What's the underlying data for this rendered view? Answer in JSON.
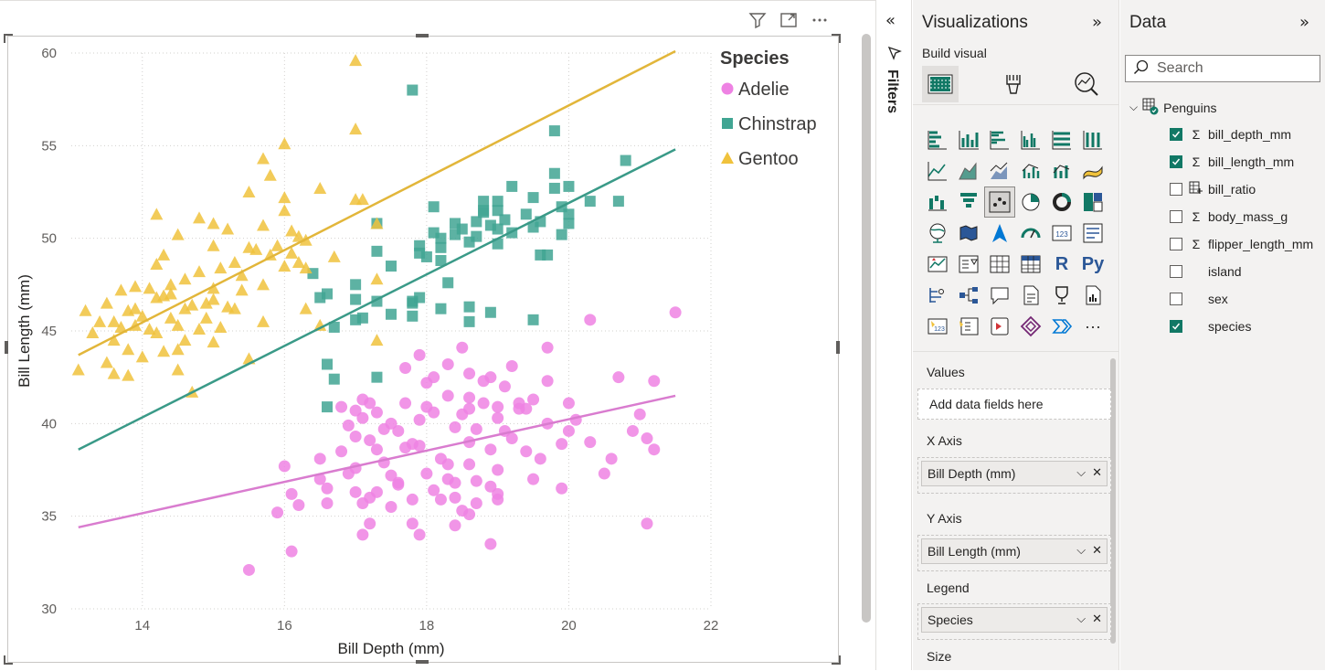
{
  "visual_toolbar": {
    "filter_icon": "filter-icon",
    "focus_icon": "focus-mode-icon",
    "more_icon": "more-options-icon"
  },
  "chart_data": {
    "type": "scatter",
    "xlabel": "Bill Depth (mm)",
    "ylabel": "Bill Length (mm)",
    "xlim": [
      13,
      22
    ],
    "ylim": [
      30,
      60
    ],
    "xticks": [
      "14",
      "16",
      "18",
      "20",
      "22"
    ],
    "yticks": [
      "30",
      "35",
      "40",
      "45",
      "50",
      "55",
      "60"
    ],
    "grid": true,
    "legend": {
      "title": "Species",
      "placement": "top-right"
    },
    "series": [
      {
        "name": "Adelie",
        "marker": "circle",
        "color": "#ee82e3",
        "trendline": {
          "x": [
            13.1,
            21.5
          ],
          "y": [
            34.4,
            41.5
          ]
        },
        "points": [
          [
            15.5,
            32.1
          ],
          [
            16.1,
            33.1
          ],
          [
            15.9,
            35.2
          ],
          [
            16.2,
            35.6
          ],
          [
            16.1,
            36.2
          ],
          [
            16.0,
            37.7
          ],
          [
            16.5,
            38.1
          ],
          [
            16.5,
            37.0
          ],
          [
            16.6,
            36.5
          ],
          [
            16.6,
            35.7
          ],
          [
            16.9,
            37.3
          ],
          [
            17.0,
            37.6
          ],
          [
            16.8,
            38.5
          ],
          [
            17.1,
            35.7
          ],
          [
            17.2,
            36.0
          ],
          [
            17.0,
            39.3
          ],
          [
            17.1,
            40.3
          ],
          [
            17.2,
            41.1
          ],
          [
            17.3,
            40.6
          ],
          [
            17.0,
            40.7
          ],
          [
            17.4,
            39.7
          ],
          [
            17.3,
            38.6
          ],
          [
            17.5,
            37.2
          ],
          [
            17.6,
            36.8
          ],
          [
            17.7,
            38.7
          ],
          [
            17.5,
            35.5
          ],
          [
            17.8,
            35.9
          ],
          [
            17.9,
            38.8
          ],
          [
            17.9,
            40.2
          ],
          [
            18.0,
            40.9
          ],
          [
            18.0,
            42.2
          ],
          [
            18.1,
            40.6
          ],
          [
            18.2,
            38.1
          ],
          [
            18.3,
            37.8
          ],
          [
            18.4,
            39.8
          ],
          [
            18.4,
            36.8
          ],
          [
            18.5,
            40.5
          ],
          [
            18.6,
            41.4
          ],
          [
            18.6,
            39.0
          ],
          [
            18.6,
            37.8
          ],
          [
            18.7,
            39.7
          ],
          [
            18.8,
            42.3
          ],
          [
            18.8,
            41.1
          ],
          [
            18.9,
            36.6
          ],
          [
            19.0,
            36.2
          ],
          [
            19.0,
            40.9
          ],
          [
            19.0,
            37.5
          ],
          [
            19.1,
            42.0
          ],
          [
            19.2,
            39.2
          ],
          [
            19.3,
            41.1
          ],
          [
            19.4,
            38.5
          ],
          [
            19.5,
            37.0
          ],
          [
            19.6,
            38.1
          ],
          [
            19.7,
            42.3
          ],
          [
            19.9,
            36.5
          ],
          [
            20.0,
            41.1
          ],
          [
            20.1,
            40.2
          ],
          [
            20.3,
            45.6
          ],
          [
            20.6,
            38.1
          ],
          [
            20.7,
            42.5
          ],
          [
            21.1,
            39.2
          ],
          [
            21.1,
            34.6
          ],
          [
            21.2,
            38.6
          ],
          [
            21.2,
            42.3
          ],
          [
            21.5,
            46.0
          ],
          [
            19.7,
            44.1
          ],
          [
            18.3,
            43.2
          ],
          [
            18.6,
            42.7
          ],
          [
            18.5,
            44.1
          ],
          [
            18.1,
            42.5
          ],
          [
            17.7,
            43.0
          ],
          [
            17.9,
            43.7
          ],
          [
            18.9,
            42.5
          ],
          [
            19.2,
            43.1
          ],
          [
            18.4,
            34.5
          ],
          [
            17.8,
            34.6
          ],
          [
            17.9,
            34.0
          ],
          [
            18.9,
            33.5
          ],
          [
            17.1,
            34.0
          ],
          [
            17.2,
            34.6
          ],
          [
            18.6,
            35.1
          ],
          [
            18.4,
            36.0
          ],
          [
            18.3,
            37.0
          ],
          [
            17.6,
            36.7
          ],
          [
            17.3,
            36.3
          ],
          [
            17.0,
            36.3
          ],
          [
            17.4,
            37.9
          ],
          [
            17.8,
            38.9
          ],
          [
            18.0,
            37.3
          ],
          [
            18.2,
            35.9
          ],
          [
            18.5,
            35.3
          ],
          [
            18.7,
            36.9
          ],
          [
            18.9,
            38.6
          ],
          [
            19.1,
            39.6
          ],
          [
            19.3,
            40.8
          ],
          [
            19.5,
            41.3
          ],
          [
            19.7,
            40.0
          ],
          [
            19.9,
            38.9
          ],
          [
            20.0,
            39.6
          ],
          [
            20.3,
            39.0
          ],
          [
            20.5,
            37.3
          ],
          [
            20.9,
            39.6
          ],
          [
            21.0,
            40.5
          ],
          [
            19.0,
            35.9
          ],
          [
            18.7,
            35.7
          ],
          [
            18.1,
            36.4
          ],
          [
            17.6,
            39.6
          ],
          [
            17.7,
            41.1
          ],
          [
            17.5,
            40.0
          ],
          [
            17.2,
            39.1
          ],
          [
            16.9,
            39.9
          ],
          [
            16.8,
            40.9
          ],
          [
            17.1,
            41.3
          ],
          [
            18.3,
            41.5
          ],
          [
            18.6,
            40.8
          ],
          [
            19.0,
            40.3
          ],
          [
            19.4,
            40.8
          ]
        ]
      },
      {
        "name": "Chinstrap",
        "marker": "square",
        "color": "#41a593",
        "trendline": {
          "x": [
            13.1,
            21.5
          ],
          "y": [
            38.6,
            54.8
          ]
        },
        "points": [
          [
            16.4,
            48.1
          ],
          [
            16.5,
            46.8
          ],
          [
            16.6,
            43.2
          ],
          [
            16.6,
            40.9
          ],
          [
            16.7,
            45.2
          ],
          [
            16.6,
            47.0
          ],
          [
            16.7,
            42.4
          ],
          [
            17.0,
            45.6
          ],
          [
            17.0,
            47.5
          ],
          [
            17.0,
            46.7
          ],
          [
            17.1,
            45.7
          ],
          [
            17.3,
            50.8
          ],
          [
            17.3,
            49.3
          ],
          [
            17.3,
            46.6
          ],
          [
            17.3,
            42.5
          ],
          [
            17.5,
            45.9
          ],
          [
            17.5,
            48.5
          ],
          [
            17.8,
            45.8
          ],
          [
            17.8,
            46.6
          ],
          [
            17.8,
            46.5
          ],
          [
            17.8,
            58.0
          ],
          [
            17.9,
            46.8
          ],
          [
            17.9,
            49.6
          ],
          [
            17.9,
            49.2
          ],
          [
            18.1,
            50.3
          ],
          [
            18.1,
            51.7
          ],
          [
            18.2,
            49.5
          ],
          [
            18.2,
            50.0
          ],
          [
            18.2,
            46.2
          ],
          [
            18.3,
            47.6
          ],
          [
            18.4,
            50.8
          ],
          [
            18.5,
            50.5
          ],
          [
            18.6,
            46.3
          ],
          [
            18.6,
            45.5
          ],
          [
            18.6,
            49.8
          ],
          [
            18.7,
            50.9
          ],
          [
            18.7,
            50.1
          ],
          [
            18.8,
            52.0
          ],
          [
            18.8,
            51.5
          ],
          [
            18.9,
            50.7
          ],
          [
            18.9,
            46.0
          ],
          [
            19.0,
            49.7
          ],
          [
            19.0,
            51.5
          ],
          [
            19.0,
            52.0
          ],
          [
            19.0,
            50.5
          ],
          [
            19.1,
            51.0
          ],
          [
            19.2,
            50.3
          ],
          [
            19.4,
            51.3
          ],
          [
            19.5,
            50.6
          ],
          [
            19.5,
            45.6
          ],
          [
            19.5,
            52.2
          ],
          [
            19.6,
            49.1
          ],
          [
            19.6,
            50.9
          ],
          [
            19.7,
            49.1
          ],
          [
            19.8,
            52.7
          ],
          [
            19.8,
            53.5
          ],
          [
            19.8,
            55.8
          ],
          [
            19.9,
            50.2
          ],
          [
            19.9,
            51.7
          ],
          [
            20.0,
            52.8
          ],
          [
            20.0,
            50.8
          ],
          [
            20.0,
            51.3
          ],
          [
            20.3,
            52.0
          ],
          [
            20.7,
            52.0
          ],
          [
            20.8,
            54.2
          ],
          [
            18.4,
            50.2
          ],
          [
            18.8,
            51.4
          ],
          [
            19.2,
            52.8
          ],
          [
            18.0,
            49.0
          ],
          [
            18.2,
            48.8
          ]
        ]
      },
      {
        "name": "Gentoo",
        "marker": "triangle",
        "color": "#f0c23c",
        "trendline": {
          "x": [
            13.1,
            21.5
          ],
          "y": [
            43.7,
            60.1
          ]
        },
        "points": [
          [
            13.1,
            42.9
          ],
          [
            13.2,
            46.1
          ],
          [
            13.3,
            44.9
          ],
          [
            13.4,
            45.5
          ],
          [
            13.5,
            43.3
          ],
          [
            13.5,
            46.5
          ],
          [
            13.6,
            45.5
          ],
          [
            13.6,
            42.7
          ],
          [
            13.7,
            47.2
          ],
          [
            13.7,
            45.2
          ],
          [
            13.8,
            42.6
          ],
          [
            13.8,
            44.0
          ],
          [
            13.9,
            45.3
          ],
          [
            13.9,
            47.4
          ],
          [
            14.0,
            45.8
          ],
          [
            14.0,
            43.6
          ],
          [
            14.1,
            45.1
          ],
          [
            14.2,
            46.8
          ],
          [
            14.2,
            48.6
          ],
          [
            14.2,
            44.9
          ],
          [
            14.3,
            49.1
          ],
          [
            14.3,
            46.9
          ],
          [
            14.4,
            47.5
          ],
          [
            14.4,
            45.7
          ],
          [
            14.5,
            42.9
          ],
          [
            14.5,
            44.0
          ],
          [
            14.5,
            45.3
          ],
          [
            14.5,
            50.2
          ],
          [
            14.6,
            46.2
          ],
          [
            14.6,
            47.8
          ],
          [
            14.7,
            41.7
          ],
          [
            14.8,
            48.2
          ],
          [
            14.8,
            45.1
          ],
          [
            14.9,
            46.5
          ],
          [
            15.0,
            47.3
          ],
          [
            15.0,
            49.6
          ],
          [
            15.0,
            50.8
          ],
          [
            15.0,
            46.7
          ],
          [
            15.1,
            48.4
          ],
          [
            15.1,
            45.2
          ],
          [
            15.2,
            50.5
          ],
          [
            15.3,
            48.7
          ],
          [
            15.3,
            46.2
          ],
          [
            15.4,
            47.2
          ],
          [
            15.5,
            49.5
          ],
          [
            15.5,
            43.5
          ],
          [
            15.7,
            45.5
          ],
          [
            15.7,
            47.5
          ],
          [
            15.7,
            50.7
          ],
          [
            15.7,
            54.3
          ],
          [
            15.8,
            53.4
          ],
          [
            15.8,
            49.1
          ],
          [
            15.9,
            49.6
          ],
          [
            16.0,
            48.5
          ],
          [
            16.0,
            52.2
          ],
          [
            16.0,
            55.1
          ],
          [
            16.1,
            49.2
          ],
          [
            16.1,
            50.4
          ],
          [
            16.2,
            48.7
          ],
          [
            16.3,
            49.9
          ],
          [
            16.3,
            46.2
          ],
          [
            16.5,
            45.3
          ],
          [
            16.7,
            49.0
          ],
          [
            17.0,
            52.1
          ],
          [
            17.0,
            55.9
          ],
          [
            17.0,
            59.6
          ],
          [
            17.1,
            52.1
          ],
          [
            17.3,
            47.8
          ],
          [
            17.3,
            44.5
          ],
          [
            17.3,
            50.8
          ],
          [
            16.3,
            48.4
          ],
          [
            16.2,
            50.1
          ],
          [
            15.6,
            49.4
          ],
          [
            15.4,
            48.0
          ],
          [
            15.2,
            46.3
          ],
          [
            14.9,
            45.7
          ],
          [
            14.7,
            46.4
          ],
          [
            14.4,
            47.0
          ],
          [
            14.1,
            47.3
          ],
          [
            13.8,
            46.1
          ],
          [
            14.2,
            51.3
          ],
          [
            14.8,
            51.1
          ],
          [
            15.5,
            52.5
          ],
          [
            16.0,
            51.5
          ],
          [
            16.5,
            52.7
          ],
          [
            13.9,
            46.2
          ],
          [
            14.6,
            44.5
          ],
          [
            15.0,
            44.4
          ],
          [
            14.3,
            43.9
          ],
          [
            13.6,
            44.5
          ]
        ]
      }
    ]
  },
  "filters": {
    "label": "Filters",
    "collapse_icon": "double-chevron-left-icon",
    "filter_icon": "filter-icon"
  },
  "visualizations": {
    "title": "Visualizations",
    "expand_icon": "double-chevron-right-icon",
    "subtitle": "Build visual",
    "r_label": "R",
    "py_label": "Py",
    "more": "···",
    "wells": {
      "values_label": "Values",
      "values_placeholder": "Add data fields here",
      "xaxis_label": "X Axis",
      "xaxis_field": "Bill Depth (mm)",
      "yaxis_label": "Y Axis",
      "yaxis_field": "Bill Length (mm)",
      "legend_label": "Legend",
      "legend_field": "Species",
      "size_label": "Size",
      "chevron": "⌵",
      "remove": "✕"
    }
  },
  "data_pane": {
    "title": "Data",
    "expand_icon": "double-chevron-right-icon",
    "search_placeholder": "Search",
    "table_name": "Penguins",
    "fields": [
      {
        "name": "bill_depth_mm",
        "checked": true,
        "icon": "sigma-icon"
      },
      {
        "name": "bill_length_mm",
        "checked": true,
        "icon": "sigma-icon"
      },
      {
        "name": "bill_ratio",
        "checked": false,
        "icon": "calculated-column-icon"
      },
      {
        "name": "body_mass_g",
        "checked": false,
        "icon": "sigma-icon"
      },
      {
        "name": "flipper_length_mm",
        "checked": false,
        "icon": "sigma-icon"
      },
      {
        "name": "island",
        "checked": false,
        "icon": ""
      },
      {
        "name": "sex",
        "checked": false,
        "icon": ""
      },
      {
        "name": "species",
        "checked": true,
        "icon": ""
      }
    ]
  }
}
